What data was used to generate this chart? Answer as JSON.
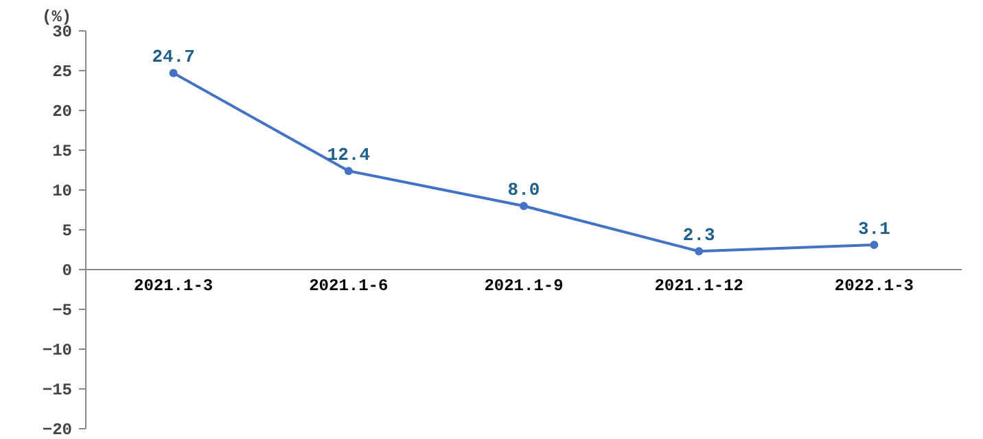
{
  "chart_data": {
    "type": "line",
    "ylabel": "(%)",
    "categories": [
      "2021.1-3",
      "2021.1-6",
      "2021.1-9",
      "2021.1-12",
      "2022.1-3"
    ],
    "series": [
      {
        "color": "#4472c4",
        "values": [
          24.7,
          12.4,
          8.0,
          2.3,
          3.1
        ],
        "value_labels": [
          "24.7",
          "12.4",
          "8.0",
          "2.3",
          "3.1"
        ]
      }
    ],
    "ylim": [
      -20,
      30
    ],
    "yticks": [
      -20,
      -15,
      -10,
      -5,
      0,
      5,
      10,
      15,
      20,
      25,
      30
    ],
    "grid": false,
    "marker": "circle"
  }
}
